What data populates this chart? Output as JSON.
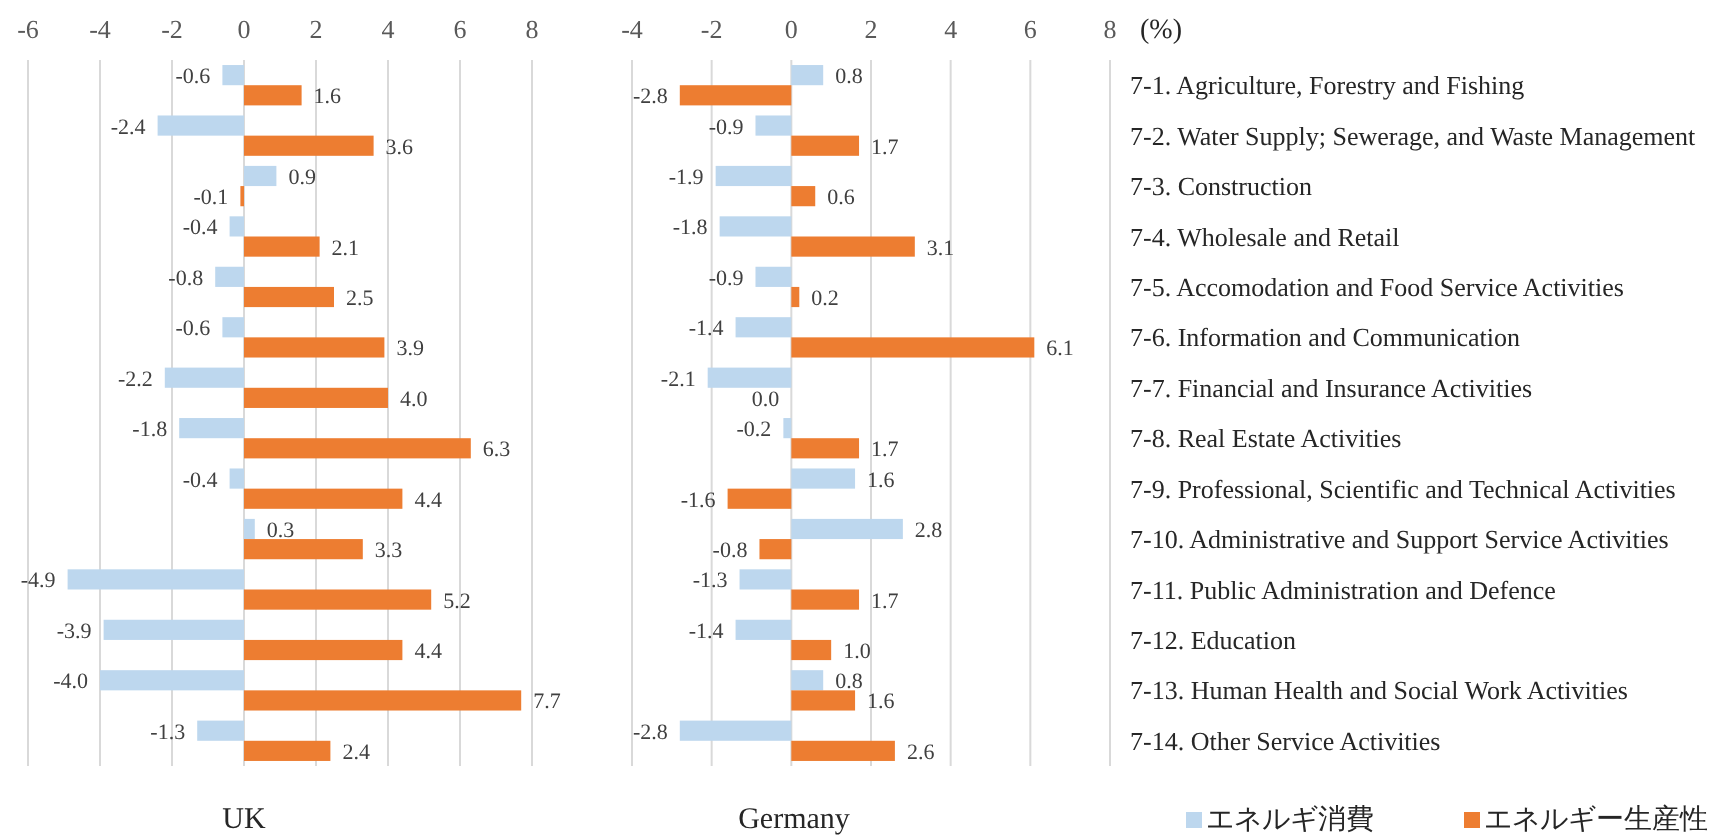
{
  "chart_data": [
    {
      "type": "bar",
      "orientation": "horizontal",
      "title": "UK",
      "categories": [
        null,
        null,
        null,
        null,
        null,
        null,
        null,
        null,
        null,
        null,
        null,
        null,
        null,
        null
      ],
      "series": [
        {
          "color": "#bdd7ee",
          "values": [
            -0.6,
            -2.4,
            0.9,
            -0.4,
            -0.8,
            -0.6,
            -2.2,
            -1.8,
            -0.4,
            0.3,
            -4.9,
            -3.9,
            -4.0,
            -1.3
          ],
          "value_labels": [
            "-0.6",
            "-2.4",
            "0.9",
            "-0.4",
            "-0.8",
            "-0.6",
            "-2.2",
            "-1.8",
            "-0.4",
            "0.3",
            "-4.9",
            "-3.9",
            "-4.0",
            "-1.3"
          ]
        },
        {
          "color": "#ed7d31",
          "values": [
            1.6,
            3.6,
            -0.1,
            2.1,
            2.5,
            3.9,
            4.0,
            6.3,
            4.4,
            3.3,
            5.2,
            4.4,
            7.7,
            2.4
          ],
          "value_labels": [
            "1.6",
            "3.6",
            "-0.1",
            "2.1",
            "2.5",
            "3.9",
            "4.0",
            "6.3",
            "4.4",
            "3.3",
            "5.2",
            "4.4",
            "7.7",
            "2.4"
          ]
        }
      ],
      "xlim": [
        -6,
        8
      ],
      "xticks": [
        -6,
        -4,
        -2,
        0,
        2,
        4,
        6,
        8
      ],
      "grid": "x"
    },
    {
      "type": "bar",
      "orientation": "horizontal",
      "title": "Germany",
      "xlabel": "(%)",
      "categories": [
        "7-1. Agriculture, Forestry and Fishing",
        "7-2. Water Supply; Sewerage, and Waste Management",
        "7-3. Construction",
        "7-4. Wholesale and Retail",
        "7-5. Accomodation and Food Service Activities",
        "7-6. Information and Communication",
        "7-7. Financial and Insurance Activities",
        "7-8. Real Estate Activities",
        "7-9. Professional, Scientific and Technical Activities",
        "7-10. Administrative and Support Service Activities",
        "7-11. Public Administration and Defence",
        "7-12. Education",
        "7-13. Human Health and Social Work Activities",
        "7-14. Other Service Activities"
      ],
      "series": [
        {
          "name": "エネルギ消費",
          "color": "#bdd7ee",
          "values": [
            0.8,
            -0.9,
            -1.9,
            -1.8,
            -0.9,
            -1.4,
            -2.1,
            -0.2,
            1.6,
            2.8,
            -1.3,
            -1.4,
            0.8,
            -2.8
          ],
          "value_labels": [
            "0.8",
            "-0.9",
            "-1.9",
            "-1.8",
            "-0.9",
            "-1.4",
            "-2.1",
            "-0.2",
            "1.6",
            "2.8",
            "-1.3",
            "-1.4",
            "0.8",
            "-2.8"
          ]
        },
        {
          "name": "エネルギー生産性",
          "color": "#ed7d31",
          "values": [
            -2.8,
            1.7,
            0.6,
            3.1,
            0.2,
            6.1,
            0.0,
            1.7,
            -1.6,
            -0.8,
            1.7,
            1.0,
            1.6,
            2.6
          ],
          "value_labels": [
            "-2.8",
            "1.7",
            "0.6",
            "3.1",
            "0.2",
            "6.1",
            "0.0",
            "1.7",
            "-1.6",
            "-0.8",
            "1.7",
            "1.0",
            "1.6",
            "2.6"
          ]
        }
      ],
      "xlim": [
        -4,
        8
      ],
      "xticks": [
        -4,
        -2,
        0,
        2,
        4,
        6,
        8
      ],
      "grid": "x",
      "legend": "bottom right"
    }
  ]
}
